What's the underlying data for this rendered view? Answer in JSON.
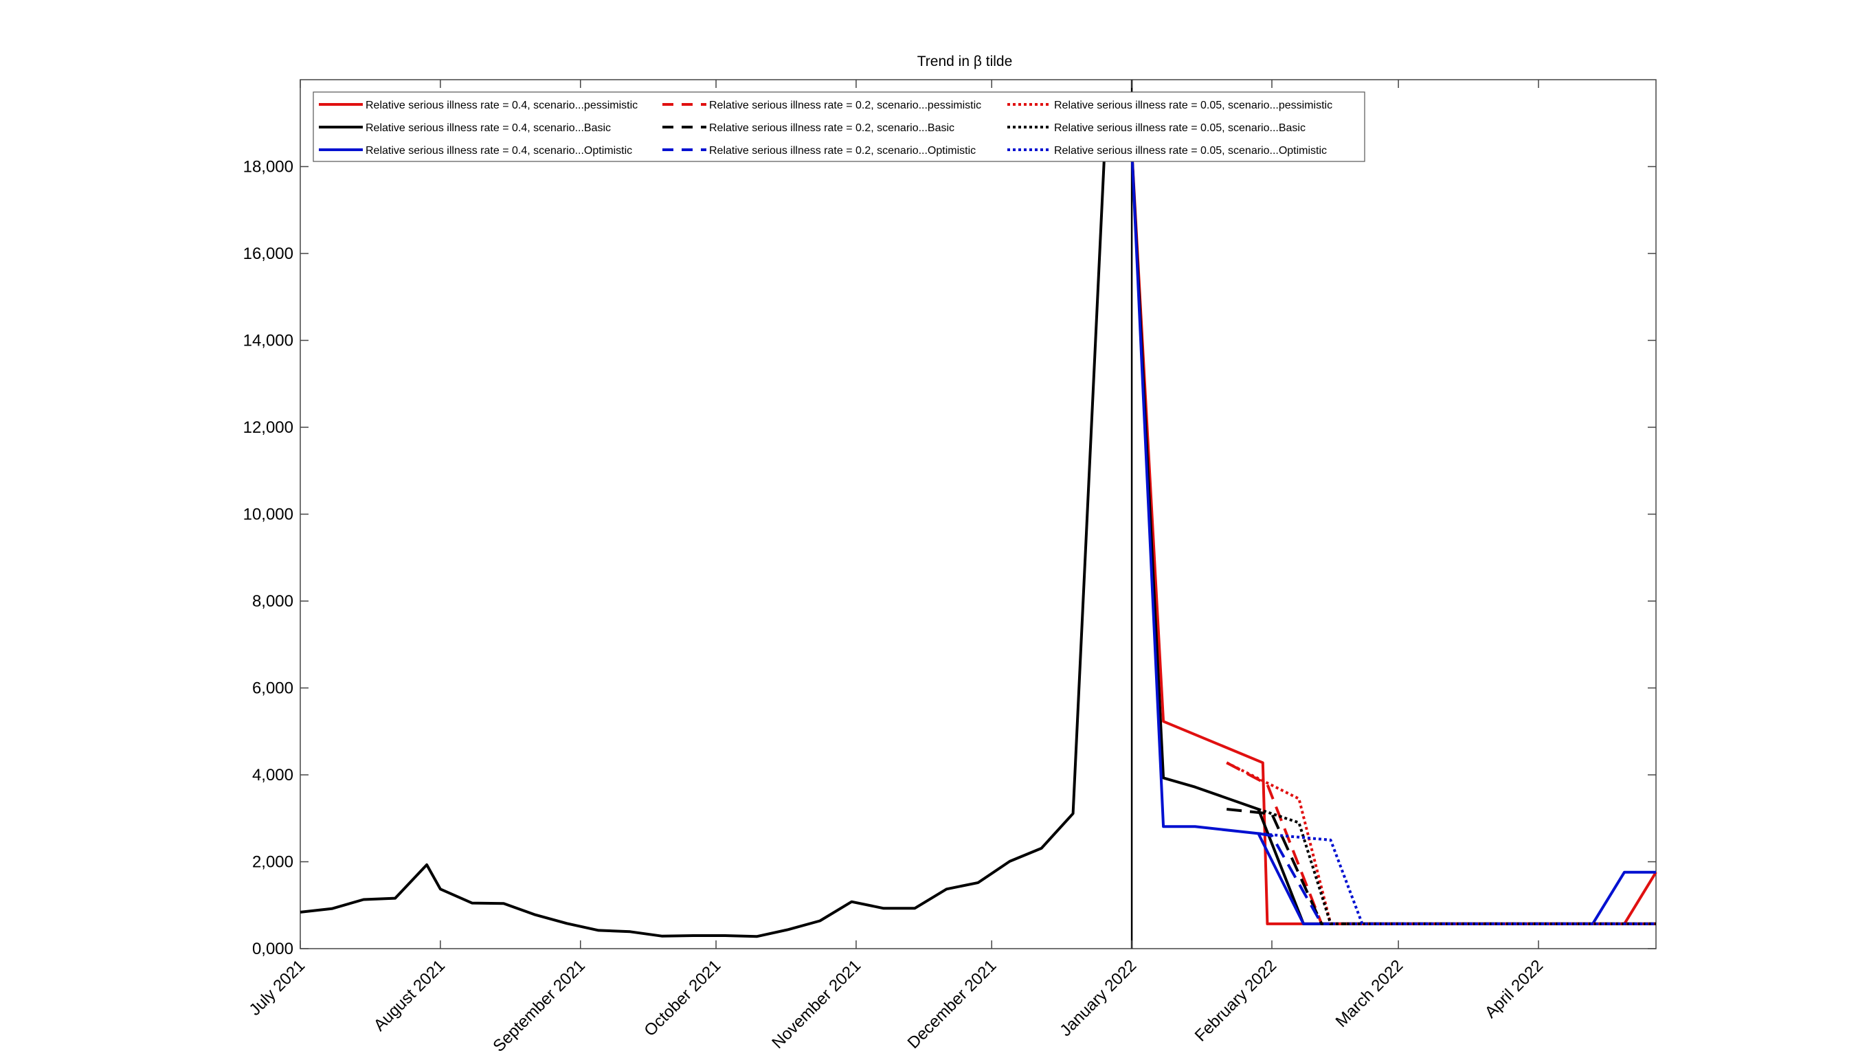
{
  "chart_data": {
    "type": "line",
    "title": "Trend in β tilde",
    "xlabel": "",
    "ylabel": "",
    "x_axis_type": "date",
    "xlim": [
      "2021-07-01",
      "2022-04-27"
    ],
    "ylim": [
      0,
      20000
    ],
    "y_ticks": [
      0,
      2000,
      4000,
      6000,
      8000,
      10000,
      12000,
      14000,
      16000,
      18000
    ],
    "y_tick_labels": [
      "0,000",
      "2,000",
      "4,000",
      "6,000",
      "8,000",
      "10,000",
      "12,000",
      "14,000",
      "16,000",
      "18,000"
    ],
    "x_ticks": [
      "2021-07-01",
      "2021-08-01",
      "2021-09-01",
      "2021-10-01",
      "2021-11-01",
      "2021-12-01",
      "2022-01-01",
      "2022-02-01",
      "2022-03-01",
      "2022-04-01"
    ],
    "x_tick_labels": [
      "July 2021",
      "August 2021",
      "September 2021",
      "October 2021",
      "November 2021",
      "December 2021",
      "January 2022",
      "February 2022",
      "March 2022",
      "April 2022"
    ],
    "vertical_marker": "2022-01-01",
    "grid": false,
    "legend_position": "top-left",
    "colors": {
      "pessimistic": "#e01010",
      "basic": "#000000",
      "optimistic": "#0010d0"
    },
    "history": {
      "x": [
        "2021-07-01",
        "2021-07-08",
        "2021-07-15",
        "2021-07-22",
        "2021-07-29",
        "2021-08-01",
        "2021-08-08",
        "2021-08-15",
        "2021-08-22",
        "2021-08-29",
        "2021-09-05",
        "2021-09-12",
        "2021-09-19",
        "2021-09-26",
        "2021-10-03",
        "2021-10-10",
        "2021-10-17",
        "2021-10-24",
        "2021-10-31",
        "2021-11-07",
        "2021-11-14",
        "2021-11-21",
        "2021-11-28",
        "2021-12-05",
        "2021-12-12",
        "2021-12-19",
        "2021-12-26",
        "2022-01-01"
      ],
      "y": [
        840,
        920,
        1130,
        1160,
        1930,
        1370,
        1050,
        1040,
        780,
        580,
        420,
        390,
        290,
        300,
        300,
        280,
        440,
        640,
        1080,
        930,
        930,
        1370,
        1520,
        2010,
        2310,
        3110,
        18400,
        18400
      ]
    },
    "series": [
      {
        "name": "Relative serious illness rate = 0.4, scenario...pessimistic",
        "color": "pessimistic",
        "dash": "solid",
        "x": [
          "2022-01-01",
          "2022-01-08",
          "2022-01-30",
          "2022-01-31",
          "2022-04-13",
          "2022-04-20",
          "2022-04-27"
        ],
        "y": [
          18400,
          5230,
          4280,
          570,
          570,
          570,
          1760
        ]
      },
      {
        "name": "Relative serious illness rate = 0.4, scenario...Basic",
        "color": "basic",
        "dash": "solid",
        "x": [
          "2022-01-01",
          "2022-01-08",
          "2022-01-15",
          "2022-01-29",
          "2022-02-08",
          "2022-04-27"
        ],
        "y": [
          18400,
          3930,
          3720,
          3210,
          570,
          570
        ]
      },
      {
        "name": "Relative serious illness rate = 0.4, scenario...Optimistic",
        "color": "optimistic",
        "dash": "solid",
        "x": [
          "2022-01-01",
          "2022-01-08",
          "2022-01-15",
          "2022-01-29",
          "2022-02-08",
          "2022-04-13",
          "2022-04-20",
          "2022-04-27"
        ],
        "y": [
          18400,
          2810,
          2810,
          2650,
          570,
          570,
          1760,
          1760
        ]
      },
      {
        "name": "Relative serious illness rate = 0.2, scenario...pessimistic",
        "color": "pessimistic",
        "dash": "dashed",
        "x": [
          "2022-01-22",
          "2022-01-31",
          "2022-02-12",
          "2022-04-27"
        ],
        "y": [
          4280,
          3780,
          570,
          570
        ]
      },
      {
        "name": "Relative serious illness rate = 0.2, scenario...Basic",
        "color": "basic",
        "dash": "dashed",
        "x": [
          "2022-01-22",
          "2022-02-01",
          "2022-02-12",
          "2022-04-27"
        ],
        "y": [
          3210,
          3100,
          570,
          570
        ]
      },
      {
        "name": "Relative serious illness rate = 0.2, scenario...Optimistic",
        "color": "optimistic",
        "dash": "dashed",
        "x": [
          "2022-01-29",
          "2022-02-01",
          "2022-02-12",
          "2022-04-27"
        ],
        "y": [
          2650,
          2600,
          570,
          570
        ]
      },
      {
        "name": "Relative serious illness rate = 0.05, scenario...pessimistic",
        "color": "pessimistic",
        "dash": "dotted",
        "x": [
          "2022-01-22",
          "2022-02-07",
          "2022-02-14",
          "2022-04-27"
        ],
        "y": [
          4280,
          3450,
          570,
          570
        ]
      },
      {
        "name": "Relative serious illness rate = 0.05, scenario...Basic",
        "color": "basic",
        "dash": "dotted",
        "x": [
          "2022-01-29",
          "2022-02-07",
          "2022-02-14",
          "2022-04-27"
        ],
        "y": [
          3210,
          2900,
          570,
          570
        ]
      },
      {
        "name": "Relative serious illness rate = 0.05, scenario...Optimistic",
        "color": "optimistic",
        "dash": "dotted",
        "x": [
          "2022-01-29",
          "2022-02-14",
          "2022-02-21",
          "2022-04-27"
        ],
        "y": [
          2650,
          2500,
          570,
          570
        ]
      }
    ]
  }
}
